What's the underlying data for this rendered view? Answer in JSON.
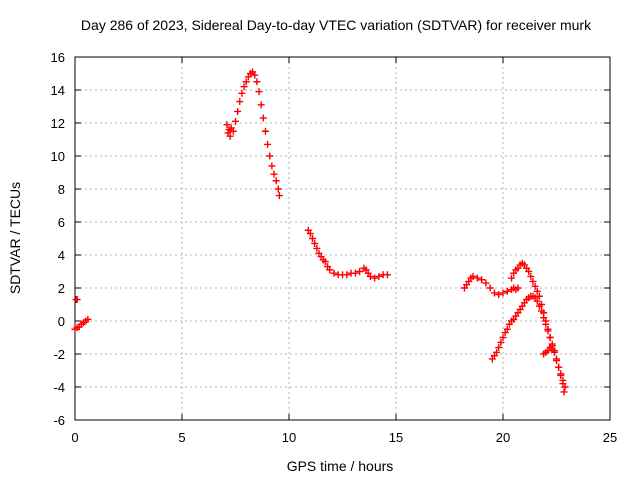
{
  "chart_data": {
    "type": "scatter",
    "title": "Day 286 of 2023, Sidereal Day-to-day VTEC variation (SDTVAR) for receiver murk",
    "xlabel": "GPS time / hours",
    "ylabel": "SDTVAR / TECUs",
    "xlim": [
      0,
      25
    ],
    "ylim": [
      -6,
      16
    ],
    "xticks": [
      0,
      5,
      10,
      15,
      20,
      25
    ],
    "yticks": [
      -6,
      -4,
      -2,
      0,
      2,
      4,
      6,
      8,
      10,
      12,
      14,
      16
    ],
    "grid": true,
    "marker": "plus",
    "color": "#ff0000",
    "series": [
      {
        "points": [
          [
            0.05,
            1.3
          ],
          [
            0.1,
            1.3
          ],
          [
            0.0,
            -0.5
          ],
          [
            0.1,
            -0.4
          ],
          [
            0.2,
            -0.35
          ],
          [
            0.3,
            -0.2
          ],
          [
            0.4,
            -0.1
          ],
          [
            0.5,
            0.0
          ],
          [
            0.6,
            0.1
          ],
          [
            7.1,
            11.9
          ],
          [
            7.15,
            11.4
          ],
          [
            7.2,
            11.6
          ],
          [
            7.25,
            11.2
          ],
          [
            7.3,
            11.7
          ],
          [
            7.4,
            11.5
          ],
          [
            7.5,
            12.1
          ],
          [
            7.6,
            12.7
          ],
          [
            7.7,
            13.3
          ],
          [
            7.8,
            13.8
          ],
          [
            7.9,
            14.2
          ],
          [
            8.0,
            14.5
          ],
          [
            8.1,
            14.8
          ],
          [
            8.2,
            15.0
          ],
          [
            8.3,
            15.1
          ],
          [
            8.4,
            14.9
          ],
          [
            8.5,
            14.5
          ],
          [
            8.6,
            13.9
          ],
          [
            8.7,
            13.1
          ],
          [
            8.8,
            12.3
          ],
          [
            8.9,
            11.5
          ],
          [
            9.0,
            10.7
          ],
          [
            9.1,
            10.0
          ],
          [
            9.2,
            9.4
          ],
          [
            9.3,
            8.9
          ],
          [
            9.4,
            8.5
          ],
          [
            9.5,
            8.0
          ],
          [
            9.55,
            7.6
          ],
          [
            10.9,
            5.5
          ],
          [
            11.0,
            5.3
          ],
          [
            11.1,
            5.0
          ],
          [
            11.2,
            4.7
          ],
          [
            11.3,
            4.4
          ],
          [
            11.4,
            4.1
          ],
          [
            11.5,
            3.9
          ],
          [
            11.6,
            3.7
          ],
          [
            11.7,
            3.6
          ],
          [
            11.8,
            3.3
          ],
          [
            11.9,
            3.1
          ],
          [
            12.1,
            2.9
          ],
          [
            12.3,
            2.8
          ],
          [
            12.5,
            2.8
          ],
          [
            12.7,
            2.8
          ],
          [
            12.9,
            2.9
          ],
          [
            13.1,
            2.9
          ],
          [
            13.3,
            3.0
          ],
          [
            13.5,
            3.2
          ],
          [
            13.6,
            3.1
          ],
          [
            13.7,
            2.9
          ],
          [
            13.8,
            2.7
          ],
          [
            14.0,
            2.6
          ],
          [
            14.2,
            2.7
          ],
          [
            14.4,
            2.8
          ],
          [
            14.6,
            2.8
          ],
          [
            18.2,
            2.0
          ],
          [
            18.3,
            2.2
          ],
          [
            18.4,
            2.4
          ],
          [
            18.5,
            2.6
          ],
          [
            18.6,
            2.7
          ],
          [
            18.8,
            2.6
          ],
          [
            19.0,
            2.5
          ],
          [
            19.2,
            2.3
          ],
          [
            19.4,
            2.0
          ],
          [
            19.6,
            1.7
          ],
          [
            19.8,
            1.6
          ],
          [
            20.0,
            1.7
          ],
          [
            20.2,
            1.8
          ],
          [
            20.4,
            1.9
          ],
          [
            20.5,
            2.0
          ],
          [
            20.6,
            1.9
          ],
          [
            20.7,
            2.0
          ],
          [
            20.4,
            2.6
          ],
          [
            20.5,
            2.9
          ],
          [
            20.6,
            3.1
          ],
          [
            20.7,
            3.2
          ],
          [
            20.8,
            3.4
          ],
          [
            20.9,
            3.5
          ],
          [
            21.0,
            3.4
          ],
          [
            21.1,
            3.2
          ],
          [
            21.2,
            3.0
          ],
          [
            21.3,
            2.7
          ],
          [
            21.4,
            2.4
          ],
          [
            21.5,
            2.1
          ],
          [
            21.6,
            1.8
          ],
          [
            21.7,
            1.5
          ],
          [
            21.8,
            1.0
          ],
          [
            21.9,
            0.5
          ],
          [
            22.0,
            0.0
          ],
          [
            22.1,
            -0.5
          ],
          [
            22.2,
            -1.0
          ],
          [
            22.3,
            -1.4
          ],
          [
            22.4,
            -1.8
          ],
          [
            22.5,
            -2.3
          ],
          [
            22.6,
            -2.8
          ],
          [
            22.7,
            -3.3
          ],
          [
            22.8,
            -3.8
          ],
          [
            22.85,
            -4.3
          ],
          [
            19.5,
            -2.3
          ],
          [
            19.6,
            -2.1
          ],
          [
            19.7,
            -1.9
          ],
          [
            19.8,
            -1.6
          ],
          [
            19.9,
            -1.3
          ],
          [
            20.0,
            -1.0
          ],
          [
            20.1,
            -0.7
          ],
          [
            20.2,
            -0.5
          ],
          [
            20.3,
            -0.2
          ],
          [
            20.4,
            0.0
          ],
          [
            20.5,
            0.1
          ],
          [
            20.6,
            0.3
          ],
          [
            20.7,
            0.5
          ],
          [
            20.8,
            0.7
          ],
          [
            20.9,
            0.9
          ],
          [
            21.0,
            1.1
          ],
          [
            21.1,
            1.3
          ],
          [
            21.2,
            1.4
          ],
          [
            21.3,
            1.5
          ],
          [
            21.4,
            1.5
          ],
          [
            21.5,
            1.4
          ],
          [
            21.6,
            1.2
          ],
          [
            21.7,
            0.9
          ],
          [
            21.8,
            0.6
          ],
          [
            21.9,
            0.2
          ],
          [
            22.0,
            -0.2
          ],
          [
            22.1,
            -0.6
          ],
          [
            22.2,
            -1.0
          ],
          [
            22.3,
            -1.5
          ],
          [
            22.4,
            -1.9
          ],
          [
            22.5,
            -2.4
          ],
          [
            22.6,
            -2.8
          ],
          [
            22.7,
            -3.2
          ],
          [
            22.8,
            -3.6
          ],
          [
            22.9,
            -4.0
          ],
          [
            21.9,
            -2.0
          ],
          [
            22.0,
            -1.9
          ],
          [
            22.1,
            -1.8
          ],
          [
            22.2,
            -1.6
          ],
          [
            22.3,
            -1.7
          ]
        ]
      }
    ]
  }
}
